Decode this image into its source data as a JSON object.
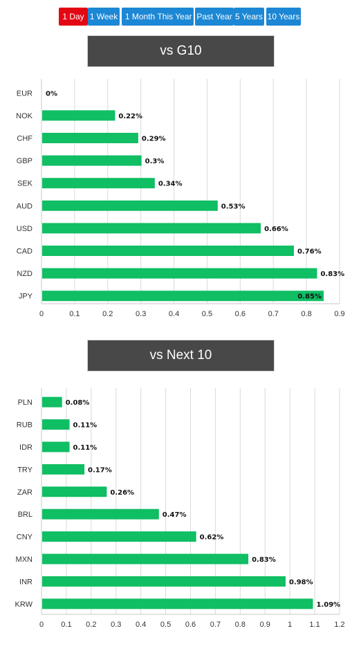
{
  "tabs": [
    {
      "label": "1 Day",
      "active": true
    },
    {
      "label": "1 Week",
      "active": false
    },
    {
      "label": "1 Month",
      "active": false
    },
    {
      "label": "This Year",
      "active": false
    },
    {
      "label": "Past Year",
      "active": false
    },
    {
      "label": "5 Years",
      "active": false
    },
    {
      "label": "10 Years",
      "active": false
    }
  ],
  "colors": {
    "active_tab": "#e30613",
    "tab": "#1c87d4",
    "bar": "#10be63",
    "title_bg": "#484848",
    "grid": "#d9d9d9"
  },
  "chart_data": [
    {
      "type": "bar",
      "orientation": "horizontal",
      "title": "vs G10",
      "categories": [
        "EUR",
        "NOK",
        "CHF",
        "GBP",
        "SEK",
        "AUD",
        "USD",
        "CAD",
        "NZD",
        "JPY"
      ],
      "values": [
        0,
        0.22,
        0.29,
        0.3,
        0.34,
        0.53,
        0.66,
        0.76,
        0.83,
        0.85
      ],
      "labels": [
        "0%",
        "0.22%",
        "0.29%",
        "0.3%",
        "0.34%",
        "0.53%",
        "0.66%",
        "0.76%",
        "0.83%",
        "0.85%"
      ],
      "xlim": [
        0,
        0.9
      ],
      "ticks": [
        "0",
        "0.1",
        "0.2",
        "0.3",
        "0.4",
        "0.5",
        "0.6",
        "0.7",
        "0.8",
        "0.9"
      ],
      "grid": true
    },
    {
      "type": "bar",
      "orientation": "horizontal",
      "title": "vs Next 10",
      "categories": [
        "PLN",
        "RUB",
        "IDR",
        "TRY",
        "ZAR",
        "BRL",
        "CNY",
        "MXN",
        "INR",
        "KRW"
      ],
      "values": [
        0.08,
        0.11,
        0.11,
        0.17,
        0.26,
        0.47,
        0.62,
        0.83,
        0.98,
        1.09
      ],
      "labels": [
        "0.08%",
        "0.11%",
        "0.11%",
        "0.17%",
        "0.26%",
        "0.47%",
        "0.62%",
        "0.83%",
        "0.98%",
        "1.09%"
      ],
      "xlim": [
        0,
        1.2
      ],
      "ticks": [
        "0",
        "0.1",
        "0.2",
        "0.3",
        "0.4",
        "0.5",
        "0.6",
        "0.7",
        "0.8",
        "0.9",
        "1",
        "1.1",
        "1.2"
      ],
      "grid": true
    }
  ]
}
